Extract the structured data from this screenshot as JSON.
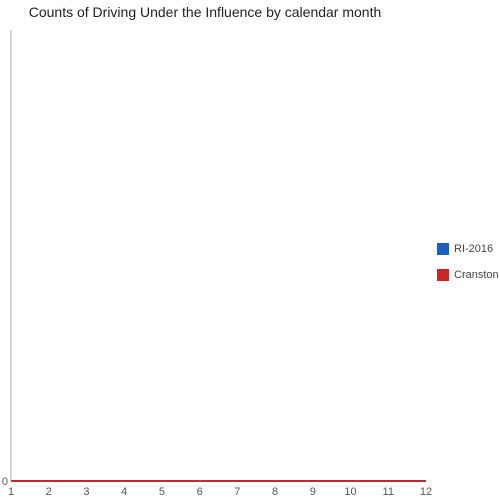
{
  "chart_data": {
    "type": "line",
    "title": "Counts of Driving Under the Influence by calendar month",
    "xlabel": "",
    "ylabel": "",
    "x": [
      1,
      2,
      3,
      4,
      5,
      6,
      7,
      8,
      9,
      10,
      11,
      12
    ],
    "x_tick_labels": [
      "1",
      "2",
      "3",
      "4",
      "5",
      "6",
      "7",
      "8",
      "9",
      "10",
      "11",
      "12"
    ],
    "y_tick_labels": [
      "0"
    ],
    "xlim": [
      1,
      12
    ],
    "ylim": [
      0,
      1
    ],
    "grid": false,
    "legend_position": "right",
    "series": [
      {
        "name": "RI-2016",
        "color": "#1f5fbf",
        "values": [
          0,
          0,
          0,
          0,
          0,
          0,
          0,
          0,
          0,
          0,
          0,
          0
        ]
      },
      {
        "name": "Cranston",
        "color": "#c62828",
        "values": [
          0,
          0,
          0,
          0,
          0,
          0,
          0,
          0,
          0,
          0,
          0,
          0
        ]
      }
    ]
  }
}
